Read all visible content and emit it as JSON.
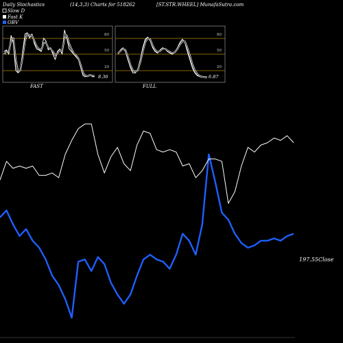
{
  "header": {
    "left": "Daily Stochastics",
    "center": "(14,3,3) Charts for 518262",
    "right": "[ST.STR.WHEEL] MunafaSutra.com"
  },
  "legend": [
    {
      "label": "Slow D",
      "color": "#000000",
      "border": "#ffffff"
    },
    {
      "label": "Fast K",
      "color": "#ffffff",
      "border": "#ffffff"
    },
    {
      "label": "OBV",
      "color": "#1f5fff",
      "border": "#1f5fff"
    }
  ],
  "colors": {
    "background": "#000000",
    "level_line": "#b8860b",
    "price": "#ffffff",
    "obv": "#1f5fff"
  },
  "chart_data": [
    {
      "type": "line",
      "title": "FAST",
      "ylim": [
        0,
        100
      ],
      "yticks": [
        "80",
        "50",
        "20"
      ],
      "last_value": "8.36",
      "series": [
        {
          "values": [
            55,
            58,
            50,
            85,
            70,
            20,
            15,
            20,
            55,
            88,
            90,
            80,
            88,
            70,
            60,
            58,
            55,
            80,
            75,
            58,
            62,
            50,
            40,
            55,
            60,
            50,
            95,
            80,
            60,
            55,
            50,
            45,
            40,
            25,
            10,
            8,
            9,
            12,
            8,
            8
          ]
        },
        {
          "values": [
            50,
            55,
            55,
            75,
            80,
            40,
            18,
            20,
            45,
            75,
            88,
            85,
            85,
            75,
            65,
            60,
            58,
            70,
            72,
            62,
            60,
            55,
            48,
            52,
            58,
            55,
            80,
            85,
            70,
            60,
            52,
            48,
            42,
            30,
            15,
            10,
            9,
            11,
            10,
            9
          ]
        }
      ]
    },
    {
      "type": "line",
      "title": "FULL",
      "ylim": [
        0,
        100
      ],
      "yticks": [
        "80",
        "50",
        "20"
      ],
      "last_value": "6.87",
      "series": [
        {
          "values": [
            50,
            58,
            62,
            55,
            40,
            25,
            15,
            15,
            22,
            40,
            62,
            78,
            82,
            75,
            62,
            55,
            52,
            58,
            62,
            60,
            55,
            52,
            50,
            55,
            62,
            72,
            78,
            72,
            55,
            40,
            25,
            15,
            10,
            8,
            7,
            7,
            7
          ]
        },
        {
          "values": [
            52,
            56,
            60,
            58,
            45,
            30,
            20,
            17,
            20,
            35,
            55,
            72,
            80,
            78,
            66,
            58,
            54,
            56,
            60,
            60,
            57,
            54,
            52,
            54,
            60,
            68,
            74,
            74,
            62,
            48,
            32,
            20,
            13,
            9,
            8,
            7,
            7
          ]
        }
      ]
    },
    {
      "type": "line",
      "title": "",
      "last_price_label": "197.55Close",
      "series": [
        {
          "values": [
            0.31,
            0.39,
            0.36,
            0.37,
            0.36,
            0.37,
            0.33,
            0.33,
            0.34,
            0.32,
            0.42,
            0.48,
            0.53,
            0.55,
            0.55,
            0.42,
            0.34,
            0.41,
            0.45,
            0.38,
            0.35,
            0.46,
            0.52,
            0.51,
            0.44,
            0.43,
            0.44,
            0.43,
            0.37,
            0.38,
            0.32,
            0.35,
            0.4,
            0.4,
            0.39,
            0.21,
            0.26,
            0.37,
            0.45,
            0.43,
            0.46,
            0.47,
            0.49,
            0.48,
            0.5,
            0.47
          ]
        },
        {
          "values": [
            0.15,
            0.18,
            0.12,
            0.07,
            0.1,
            0.05,
            0.02,
            -0.03,
            -0.1,
            -0.14,
            -0.2,
            -0.28,
            -0.04,
            -0.03,
            -0.08,
            -0.02,
            -0.05,
            -0.13,
            -0.18,
            -0.22,
            -0.18,
            -0.1,
            -0.03,
            -0.01,
            -0.03,
            -0.04,
            -0.07,
            -0.01,
            0.08,
            0.05,
            -0.01,
            0.12,
            0.42,
            0.3,
            0.17,
            0.14,
            0.08,
            0.04,
            0.02,
            0.03,
            0.05,
            0.05,
            0.06,
            0.05,
            0.07,
            0.08
          ]
        }
      ]
    }
  ]
}
